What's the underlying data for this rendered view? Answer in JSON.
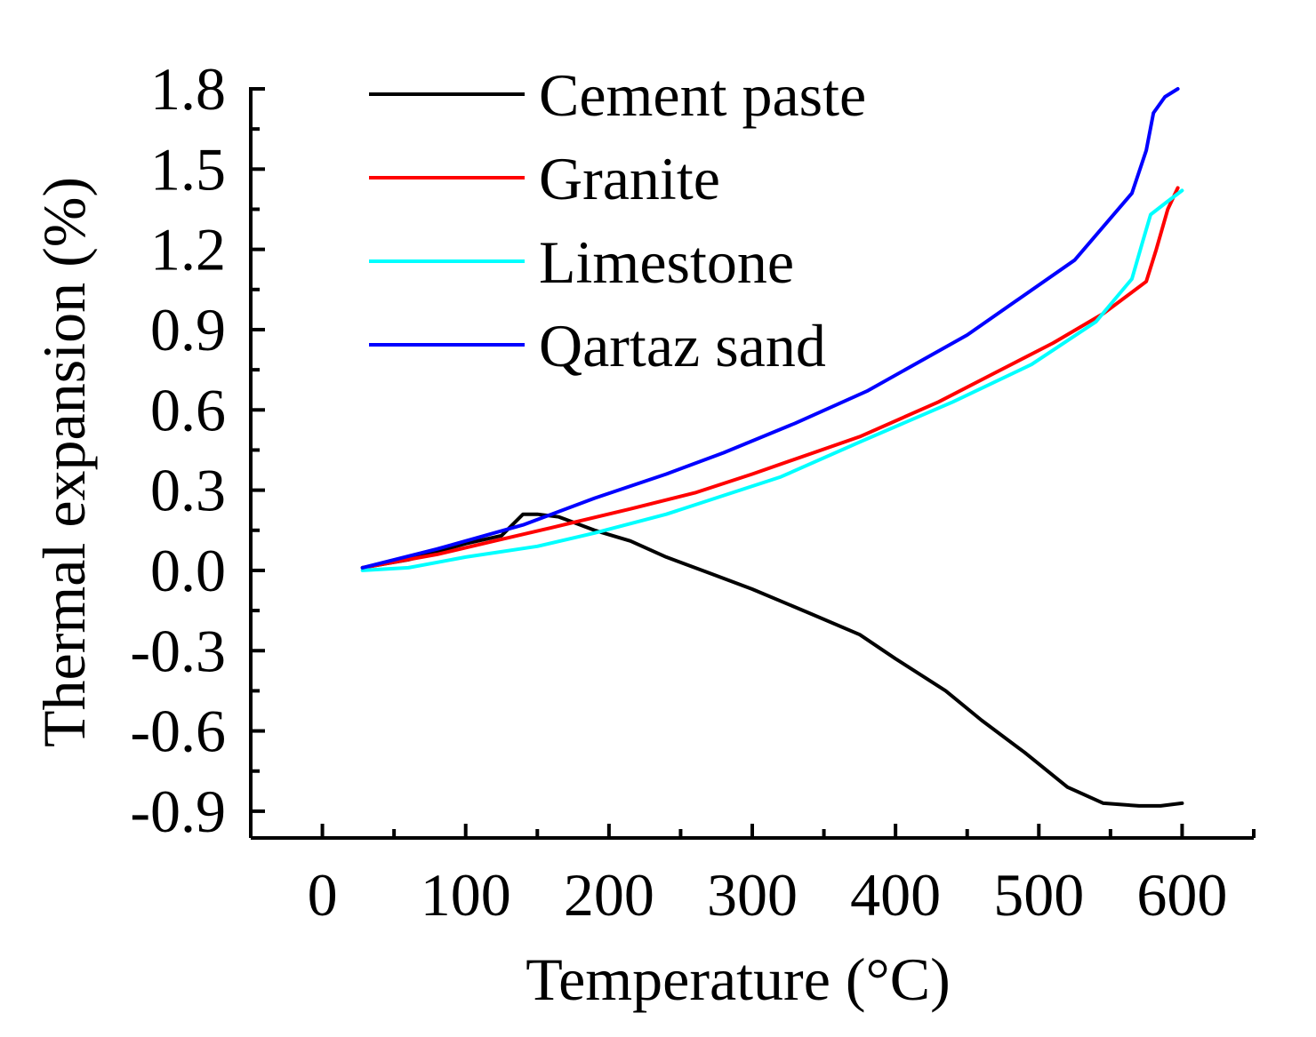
{
  "chart_data": {
    "type": "line",
    "title": "",
    "xlabel": "Temperature (°C)",
    "ylabel": "Thermal expansion (%)",
    "xlim": [
      -50,
      650
    ],
    "ylim": [
      -1.0,
      1.8
    ],
    "xticks": [
      0,
      100,
      200,
      300,
      400,
      500,
      600
    ],
    "xtick_labels": [
      "0",
      "100",
      "200",
      "300",
      "400",
      "500",
      "600"
    ],
    "yticks": [
      -0.9,
      -0.6,
      -0.3,
      0.0,
      0.3,
      0.6,
      0.9,
      1.2,
      1.5,
      1.8
    ],
    "ytick_labels": [
      "-0.9",
      "-0.6",
      "-0.3",
      "0.0",
      "0.3",
      "0.6",
      "0.9",
      "1.2",
      "1.5",
      "1.8"
    ],
    "grid": false,
    "legend_position": "top-left",
    "series": [
      {
        "name": "Cement paste",
        "color": "#000000",
        "x": [
          28,
          60,
          100,
          125,
          140,
          150,
          165,
          190,
          215,
          240,
          270,
          300,
          340,
          375,
          400,
          435,
          460,
          490,
          520,
          545,
          570,
          585,
          600
        ],
        "y": [
          0.01,
          0.04,
          0.1,
          0.13,
          0.21,
          0.21,
          0.2,
          0.15,
          0.11,
          0.05,
          -0.01,
          -0.07,
          -0.16,
          -0.24,
          -0.33,
          -0.45,
          -0.56,
          -0.68,
          -0.81,
          -0.87,
          -0.88,
          -0.88,
          -0.87
        ]
      },
      {
        "name": "Granite",
        "color": "#ff0000",
        "x": [
          28,
          80,
          120,
          160,
          215,
          260,
          300,
          375,
          430,
          470,
          510,
          545,
          575,
          582,
          590,
          597
        ],
        "y": [
          0.01,
          0.06,
          0.11,
          0.16,
          0.23,
          0.29,
          0.36,
          0.5,
          0.63,
          0.74,
          0.85,
          0.96,
          1.08,
          1.2,
          1.35,
          1.43
        ]
      },
      {
        "name": "Limestone",
        "color": "#00ffff",
        "x": [
          28,
          60,
          100,
          150,
          190,
          240,
          280,
          320,
          375,
          440,
          495,
          540,
          565,
          572,
          578,
          590,
          600
        ],
        "y": [
          0.0,
          0.01,
          0.05,
          0.09,
          0.14,
          0.21,
          0.28,
          0.35,
          0.48,
          0.63,
          0.77,
          0.93,
          1.09,
          1.22,
          1.33,
          1.38,
          1.42
        ]
      },
      {
        "name": "Qartaz sand",
        "color": "#0000ff",
        "x": [
          28,
          80,
          140,
          190,
          240,
          280,
          330,
          380,
          450,
          525,
          565,
          575,
          580,
          588,
          597
        ],
        "y": [
          0.01,
          0.08,
          0.17,
          0.27,
          0.36,
          0.44,
          0.55,
          0.67,
          0.88,
          1.16,
          1.41,
          1.57,
          1.71,
          1.77,
          1.8
        ]
      }
    ]
  }
}
